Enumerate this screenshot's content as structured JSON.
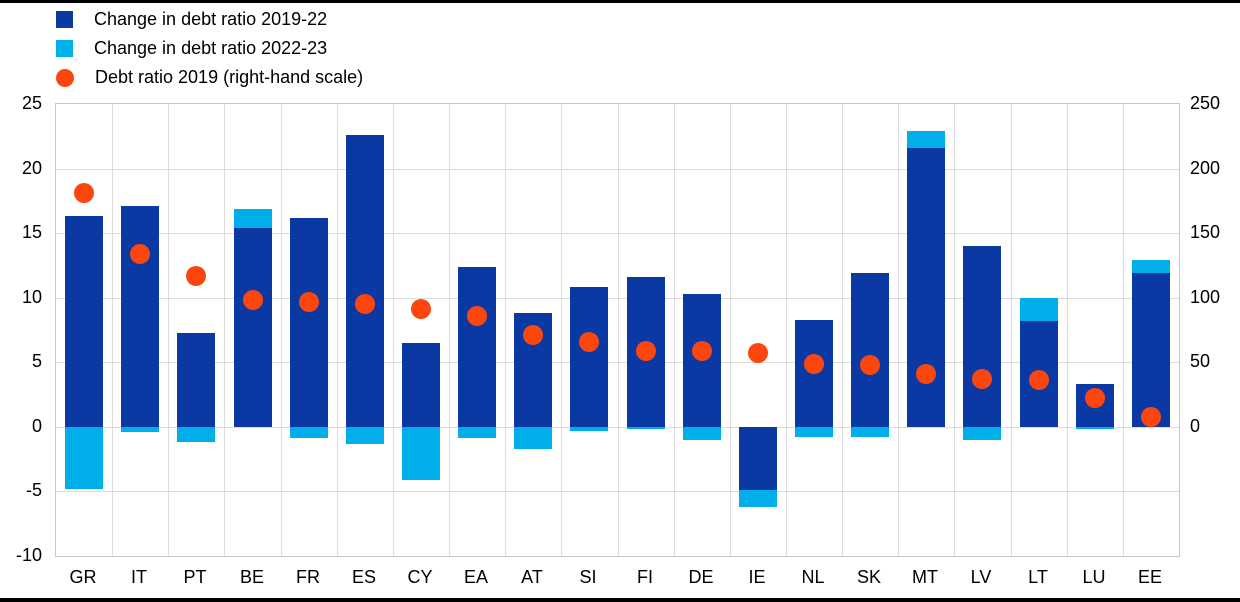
{
  "chart_data": {
    "type": "bar",
    "title": "",
    "categories": [
      "GR",
      "IT",
      "PT",
      "BE",
      "FR",
      "ES",
      "CY",
      "EA",
      "AT",
      "SI",
      "FI",
      "DE",
      "IE",
      "NL",
      "SK",
      "MT",
      "LV",
      "LT",
      "LU",
      "EE"
    ],
    "series": [
      {
        "name": "Change in debt ratio 2019-22",
        "type": "bar",
        "axis": "left",
        "color": "#0a39a3",
        "values": [
          16.3,
          17.1,
          7.3,
          15.4,
          16.2,
          22.6,
          6.5,
          12.4,
          8.8,
          10.8,
          11.6,
          10.3,
          -4.9,
          8.3,
          11.9,
          21.6,
          14.0,
          8.2,
          3.3,
          11.9
        ]
      },
      {
        "name": "Change in debt ratio 2022-23",
        "type": "bar",
        "axis": "left",
        "color": "#00aeea",
        "values": [
          -4.8,
          -0.4,
          -1.2,
          1.5,
          -0.9,
          -1.3,
          -4.1,
          -0.9,
          -1.7,
          -0.3,
          -0.2,
          -1.0,
          -1.3,
          -0.8,
          -0.8,
          1.3,
          -1.0,
          1.8,
          -0.2,
          1.0
        ]
      },
      {
        "name": "Debt ratio 2019 (right-hand scale)",
        "type": "scatter",
        "axis": "right",
        "color": "#fb470e",
        "values": [
          181,
          134,
          117,
          98,
          97,
          95,
          91,
          86,
          71,
          66,
          59,
          59,
          57,
          49,
          48,
          41,
          37,
          36,
          22,
          8
        ]
      }
    ],
    "left_axis": {
      "min": -10,
      "max": 25,
      "ticks": [
        "25",
        "20",
        "15",
        "10",
        "5",
        "0",
        "-5",
        "-10"
      ],
      "tick_values": [
        25,
        20,
        15,
        10,
        5,
        0,
        -5,
        -10
      ]
    },
    "right_axis": {
      "min": -100,
      "max": 250,
      "ticks": [
        "250",
        "200",
        "150",
        "100",
        "50",
        "0"
      ],
      "tick_values": [
        250,
        200,
        150,
        100,
        50,
        0
      ]
    },
    "grid": true,
    "legend_position": "top-left",
    "bar_stacked": true
  },
  "colors": {
    "bar_2019_22": "#0a39a3",
    "bar_2022_23": "#00aeea",
    "dot_2019": "#fb470e",
    "gridline": "#dcdcdc",
    "frame": "#c8c8c8",
    "text": "#000000",
    "border": "#000000"
  }
}
